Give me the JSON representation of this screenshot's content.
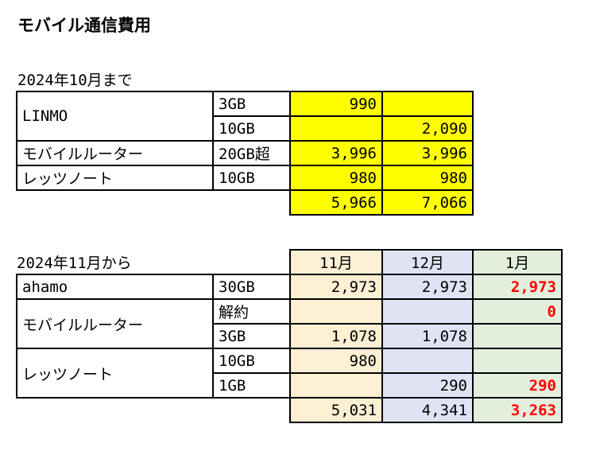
{
  "title": "モバイル通信費用",
  "section1": {
    "heading": "2024年10月まで",
    "rows": [
      {
        "name": "LINMO",
        "plan": "3GB",
        "a": "990",
        "b": ""
      },
      {
        "plan": "10GB",
        "a": "",
        "b": "2,090"
      },
      {
        "name": "モバイルルーター",
        "plan": "20GB超",
        "a": "3,996",
        "b": "3,996"
      },
      {
        "name": "レッツノート",
        "plan": "10GB",
        "a": "980",
        "b": "980"
      }
    ],
    "totals": {
      "a": "5,966",
      "b": "7,066"
    }
  },
  "section2": {
    "heading": "2024年11月から",
    "months": [
      "11月",
      "12月",
      "1月"
    ],
    "rows": [
      {
        "name": "ahamo",
        "plan": "30GB",
        "m11": "2,973",
        "m12": "2,973",
        "m1": "2,973"
      },
      {
        "name": "モバイルルーター",
        "plan": "解約",
        "m11": "",
        "m12": "",
        "m1": "0"
      },
      {
        "plan": "3GB",
        "m11": "1,078",
        "m12": "1,078",
        "m1": ""
      },
      {
        "name": "レッツノート",
        "plan": "10GB",
        "m11": "980",
        "m12": "",
        "m1": ""
      },
      {
        "plan": "1GB",
        "m11": "",
        "m12": "290",
        "m1": "290"
      }
    ],
    "totals": {
      "m11": "5,031",
      "m12": "4,341",
      "m1": "3,263"
    }
  },
  "colors": {
    "yellow": "#ffff00",
    "nov": "#fdefd3",
    "dec": "#dfe3f4",
    "jan": "#e3efdc",
    "highlight": "#ff0000"
  }
}
